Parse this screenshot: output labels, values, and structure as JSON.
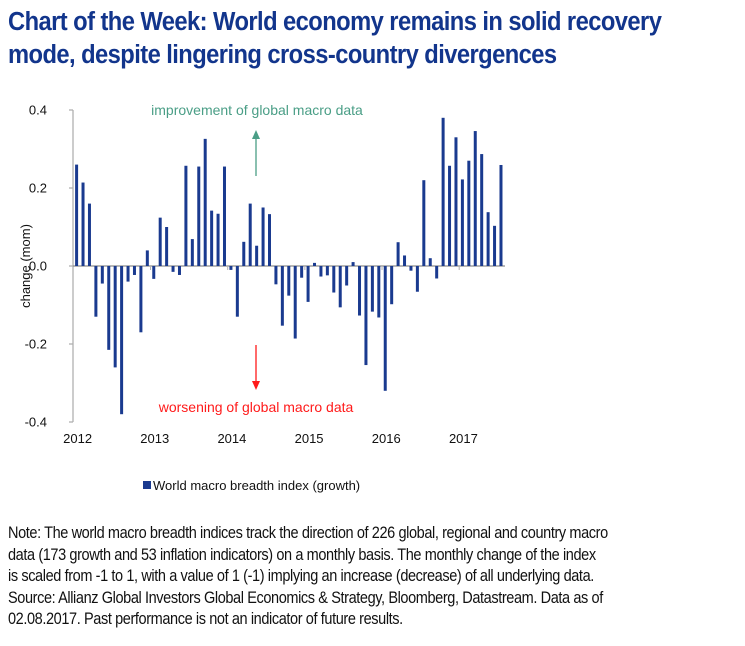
{
  "header": {
    "title_line1": "Chart of the Week: World economy remains in solid recovery",
    "title_line2": "mode, despite lingering cross-country divergences"
  },
  "colors": {
    "title": "#12358c",
    "bar": "#1a3a8f",
    "axis": "#b0b0b0",
    "improvement": "#4a9e86",
    "worsening": "#ff1a1a"
  },
  "chart_data": {
    "type": "bar",
    "title": "",
    "xlabel": "",
    "ylabel": "change (mom)",
    "ylim": [
      -0.4,
      0.4
    ],
    "yticks": [
      0.4,
      0.2,
      0.0,
      -0.2,
      -0.4
    ],
    "ytick_labels": [
      "0.4",
      "0.2",
      "0.0",
      "-0.2",
      "-0.4"
    ],
    "xtick_labels": [
      "2012",
      "2013",
      "2014",
      "2015",
      "2016",
      "2017"
    ],
    "grid": false,
    "legend_position": "bottom-center",
    "frequency": "monthly",
    "start": "2012-01",
    "annotations": {
      "up": "improvement of global macro data",
      "down": "worsening of global macro data"
    },
    "series": [
      {
        "name": "World macro breadth index (growth)",
        "values": [
          0.26,
          0.214,
          0.16,
          -0.13,
          -0.045,
          -0.215,
          -0.26,
          -0.38,
          -0.04,
          -0.023,
          -0.17,
          0.04,
          -0.033,
          0.124,
          0.1,
          -0.015,
          -0.023,
          0.257,
          0.069,
          0.255,
          0.326,
          0.142,
          0.134,
          0.255,
          -0.01,
          -0.13,
          0.062,
          0.16,
          0.052,
          0.15,
          0.133,
          -0.047,
          -0.153,
          -0.076,
          -0.186,
          -0.03,
          -0.092,
          0.008,
          -0.027,
          -0.024,
          -0.068,
          -0.106,
          -0.05,
          0.01,
          -0.127,
          -0.254,
          -0.117,
          -0.132,
          -0.32,
          -0.098,
          0.061,
          0.027,
          -0.012,
          -0.066,
          0.22,
          0.02,
          -0.032,
          0.38,
          0.257,
          0.33,
          0.222,
          0.27,
          0.346,
          0.287,
          0.138,
          0.103,
          0.259
        ]
      }
    ]
  },
  "note": {
    "lines": [
      "Note: The world macro breadth indices track the direction of 226 global, regional and country macro",
      "data (173 growth and 53 inflation indicators) on a monthly basis. The monthly change of the index",
      "is scaled from -1 to 1, with a value of 1 (-1) implying an increase (decrease) of all underlying data.",
      "Source: Allianz Global Investors Global Economics & Strategy, Bloomberg, Datastream. Data as of",
      "02.08.2017. Past performance is not an indicator of future results."
    ]
  }
}
